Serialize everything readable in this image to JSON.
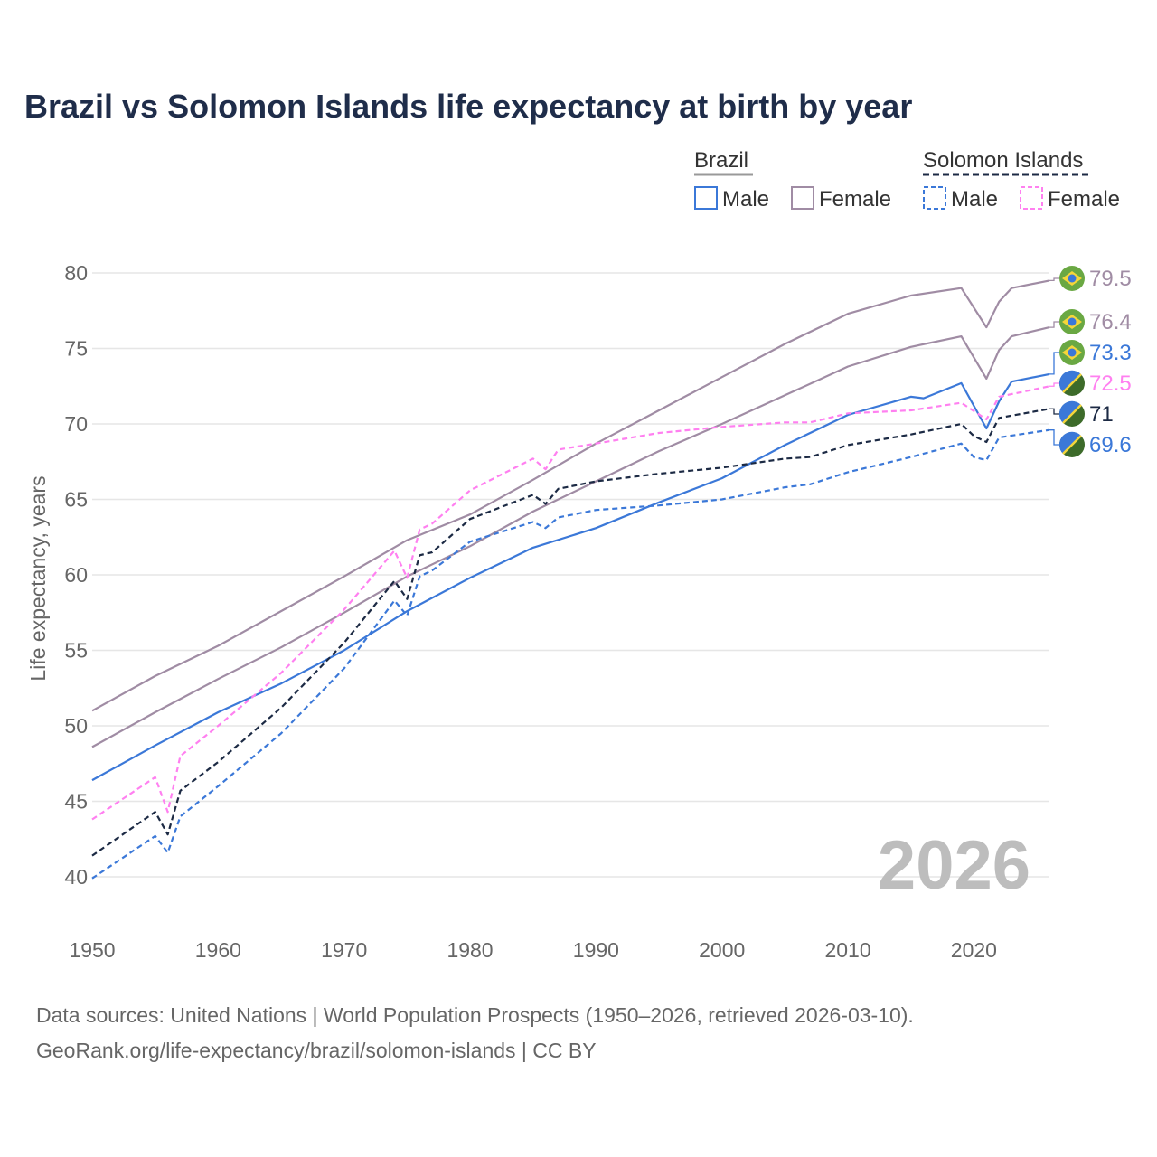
{
  "chart_data": {
    "type": "line",
    "title": "Brazil vs Solomon Islands life expectancy at birth by year",
    "xlabel": "",
    "ylabel": "Life expectancy, years",
    "xlim": [
      1950,
      2026
    ],
    "ylim": [
      38,
      81
    ],
    "xticks": [
      "1950",
      "1960",
      "1970",
      "1980",
      "1990",
      "2000",
      "2010",
      "2020"
    ],
    "yticks": [
      "40",
      "45",
      "50",
      "55",
      "60",
      "65",
      "70",
      "75",
      "80"
    ],
    "grid": true,
    "watermark": "2026",
    "legend": {
      "position": "top-right",
      "groups": [
        {
          "name": "Brazil",
          "items": [
            "Male",
            "Female"
          ]
        },
        {
          "name": "Solomon Islands",
          "items": [
            "Male",
            "Female"
          ]
        }
      ]
    },
    "series": [
      {
        "name": "Brazil Female",
        "color": "#a08ca4",
        "dash": false,
        "end_label": "79.5",
        "flag": "brazil",
        "x": [
          1950,
          1955,
          1960,
          1965,
          1970,
          1975,
          1980,
          1985,
          1990,
          1995,
          2000,
          2005,
          2010,
          2015,
          2019,
          2021,
          2022,
          2023,
          2026
        ],
        "y": [
          51.0,
          53.3,
          55.3,
          57.6,
          59.9,
          62.3,
          64.0,
          66.3,
          68.7,
          70.9,
          73.1,
          75.3,
          77.3,
          78.5,
          79.0,
          76.4,
          78.1,
          79.0,
          79.5
        ]
      },
      {
        "name": "Brazil",
        "color": "#a08ca4",
        "dash": false,
        "end_label": "76.4",
        "flag": "brazil",
        "x": [
          1950,
          1955,
          1960,
          1965,
          1970,
          1975,
          1980,
          1985,
          1990,
          1995,
          2000,
          2005,
          2010,
          2015,
          2019,
          2021,
          2022,
          2023,
          2026
        ],
        "y": [
          48.6,
          50.9,
          53.1,
          55.2,
          57.5,
          59.9,
          61.9,
          64.2,
          66.2,
          68.2,
          70.0,
          71.9,
          73.8,
          75.1,
          75.8,
          73.0,
          74.9,
          75.8,
          76.4
        ]
      },
      {
        "name": "Brazil Male",
        "color": "#3b78d8",
        "dash": false,
        "end_label": "73.3",
        "flag": "brazil",
        "x": [
          1950,
          1955,
          1960,
          1965,
          1970,
          1975,
          1980,
          1985,
          1990,
          1995,
          2000,
          2005,
          2010,
          2015,
          2016,
          2019,
          2020,
          2021,
          2022,
          2023,
          2026
        ],
        "y": [
          46.4,
          48.7,
          50.9,
          52.8,
          55.0,
          57.6,
          59.8,
          61.8,
          63.1,
          64.8,
          66.4,
          68.6,
          70.6,
          71.8,
          71.7,
          72.7,
          71.2,
          69.7,
          71.5,
          72.8,
          73.3
        ]
      },
      {
        "name": "Solomon Islands Female",
        "color": "#ff80f0",
        "dash": true,
        "end_label": "72.5",
        "flag": "solomon",
        "x": [
          1950,
          1955,
          1956,
          1957,
          1960,
          1965,
          1970,
          1974,
          1975,
          1976,
          1977,
          1980,
          1985,
          1986,
          1987,
          1990,
          1995,
          2000,
          2005,
          2007,
          2010,
          2015,
          2019,
          2021,
          2022,
          2026
        ],
        "y": [
          43.8,
          46.6,
          44.3,
          48.0,
          50.0,
          53.5,
          57.7,
          61.6,
          59.8,
          63.0,
          63.4,
          65.6,
          67.7,
          67.0,
          68.3,
          68.7,
          69.4,
          69.8,
          70.1,
          70.1,
          70.7,
          70.9,
          71.4,
          70.3,
          71.8,
          72.5
        ]
      },
      {
        "name": "Solomon Islands",
        "color": "#1c2a44",
        "dash": true,
        "end_label": "71",
        "flag": "solomon",
        "x": [
          1950,
          1955,
          1956,
          1957,
          1960,
          1965,
          1970,
          1974,
          1975,
          1976,
          1977,
          1980,
          1985,
          1986,
          1987,
          1990,
          1995,
          2000,
          2005,
          2007,
          2010,
          2015,
          2019,
          2020,
          2021,
          2022,
          2026
        ],
        "y": [
          41.4,
          44.3,
          42.8,
          45.7,
          47.6,
          51.2,
          55.5,
          59.6,
          58.4,
          61.3,
          61.5,
          63.7,
          65.3,
          64.7,
          65.7,
          66.2,
          66.7,
          67.1,
          67.7,
          67.8,
          68.6,
          69.3,
          70.0,
          69.2,
          68.8,
          70.4,
          71.0
        ]
      },
      {
        "name": "Solomon Islands Male",
        "color": "#3b78d8",
        "dash": true,
        "end_label": "69.6",
        "flag": "solomon",
        "x": [
          1950,
          1955,
          1956,
          1957,
          1960,
          1965,
          1970,
          1974,
          1975,
          1976,
          1977,
          1980,
          1985,
          1986,
          1987,
          1990,
          1995,
          2000,
          2005,
          2007,
          2010,
          2015,
          2019,
          2020,
          2021,
          2022,
          2026
        ],
        "y": [
          39.9,
          42.7,
          41.6,
          44.0,
          46.0,
          49.5,
          53.8,
          58.3,
          57.3,
          59.9,
          60.3,
          62.2,
          63.5,
          63.1,
          63.8,
          64.3,
          64.6,
          65.0,
          65.8,
          66.0,
          66.8,
          67.8,
          68.7,
          67.8,
          67.6,
          69.1,
          69.6
        ]
      }
    ]
  },
  "footer": {
    "line1": "Data sources: United Nations | World Population Prospects (1950–2026, retrieved 2026-03-10).",
    "line2": "GeoRank.org/life-expectancy/brazil/solomon-islands | CC BY"
  }
}
